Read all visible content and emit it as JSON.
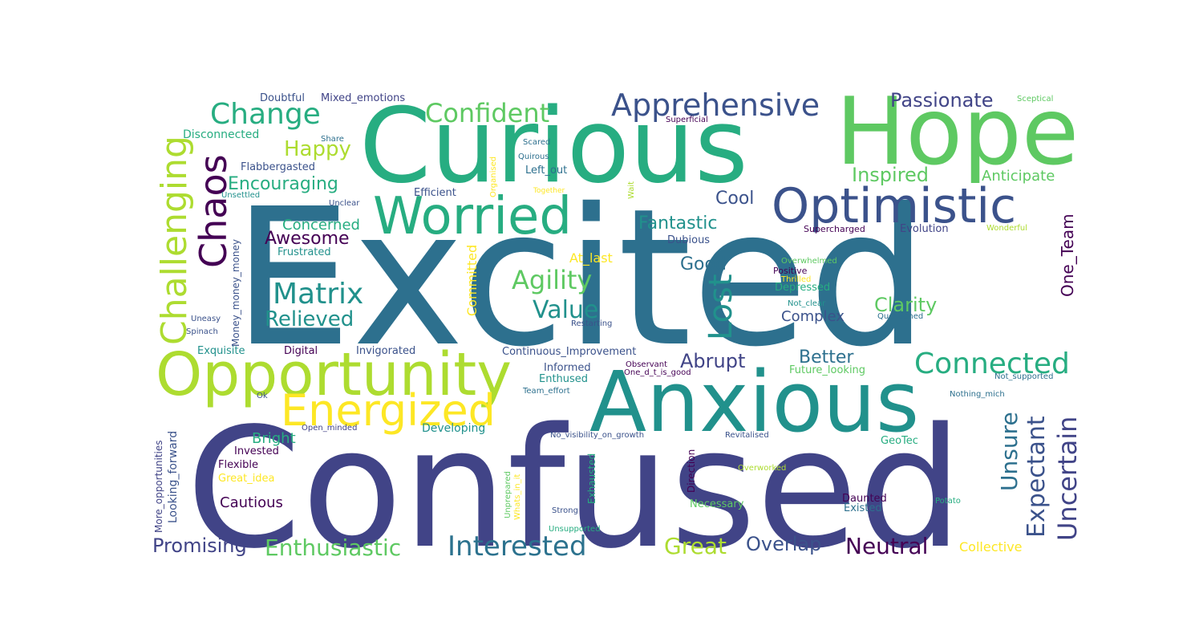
{
  "palette": {
    "c0": "#440154",
    "c1": "#3b528b",
    "c2": "#2d708e",
    "c3": "#21918c",
    "c4": "#27ad81",
    "c5": "#5ec962",
    "c6": "#addc30",
    "c7": "#fde725",
    "c8": "#414487",
    "c9": "#2c728e"
  },
  "words": {
    "excited": "Excited",
    "confused": "Confused",
    "curious": "Curious",
    "hope": "Hope",
    "anxious": "Anxious",
    "opportunity": "Opportunity",
    "optimistic": "Optimistic",
    "worried": "Worried",
    "challenging": "Challenging",
    "chaos": "Chaos",
    "energized": "Energized",
    "apprehensive": "Apprehensive",
    "confident": "Confident",
    "change": "Change",
    "passionate": "Passionate",
    "connected": "Connected",
    "uncertain": "Uncertain",
    "expectant": "Expectant",
    "unsure": "Unsure",
    "interested": "Interested",
    "enthusiastic": "Enthusiastic",
    "matrix": "Matrix",
    "agility": "Agility",
    "lost": "Lost",
    "one_team": "One_Team",
    "value": "Value",
    "relieved": "Relieved",
    "promising": "Promising",
    "neutral": "Neutral",
    "great": "Great",
    "overlap": "Overlap",
    "happy": "Happy",
    "inspired": "Inspired",
    "encouraging": "Encouraging",
    "fantastic": "Fantastic",
    "awesome": "Awesome",
    "clarity": "Clarity",
    "abrupt": "Abrupt",
    "better": "Better",
    "good": "Good",
    "cool": "Cool",
    "concerned": "Concerned",
    "anticipate": "Anticipate",
    "complex": "Complex",
    "bright": "Bright",
    "cautious": "Cautious",
    "collective": "Collective",
    "doubtful": "Doubtful",
    "mixed_emotions": "Mixed_emotions",
    "flabbergasted": "Flabbergasted",
    "disconnected": "Disconnected",
    "left_out": "Left_out",
    "quirous": "Quirous",
    "scared": "Scared",
    "share": "Share",
    "sceptical": "Sceptical",
    "superficial": "Superficial",
    "efficient": "Efficient",
    "organised": "Organised",
    "together": "Together",
    "wait": "Wait",
    "unsettled": "Unsettled",
    "unclear": "Unclear",
    "frustrated": "Frustrated",
    "at_last": "At_last",
    "committed": "Committed",
    "dubious": "Dubious",
    "supercharged": "Supercharged",
    "evolution": "Evolution",
    "wonderful": "Wonderful",
    "money": "Money_money_money",
    "overwhelmed": "Overwhelmed",
    "positive": "Positive",
    "thrilled": "Thrilled",
    "depressed": "Depressed",
    "not_clear": "Not_clear",
    "uneasy": "Uneasy",
    "spinach": "Spinach",
    "restarting": "Restarting",
    "questioned": "Questioned",
    "exquisite": "Exquisite",
    "digital": "Digital",
    "invigorated": "Invigorated",
    "continuous_improvement": "Continuous_Improvement",
    "informed": "Informed",
    "observant": "Observant",
    "one_d": "One_d_t_is_good",
    "future_looking": "Future_looking",
    "not_supported": "Not_supported",
    "enthused": "Enthused",
    "team_effort": "Team_effort",
    "nothing_mich": "Nothing_mich",
    "ok": "Ok",
    "open_minded": "Open_minded",
    "developing": "Developing",
    "no_visibility": "No_visibility_on_growth",
    "revitalised": "Revitalised",
    "more_opportunities": "More_opportunities",
    "looking_forward": "Looking_forward",
    "invested": "Invested",
    "geotec": "GeoTec",
    "flexible": "Flexible",
    "great_idea": "Great_idea",
    "overworked": "Overworked",
    "unprepared": "Unprepared",
    "whats_in_it": "Whats_in_it",
    "exhausted": "Exhausted",
    "direction": "Direction",
    "necessary": "Necessary",
    "daunted": "Daunted",
    "existed": "Existed",
    "potato": "Potato",
    "strong": "Strong",
    "unsupported": "Unsupported"
  }
}
